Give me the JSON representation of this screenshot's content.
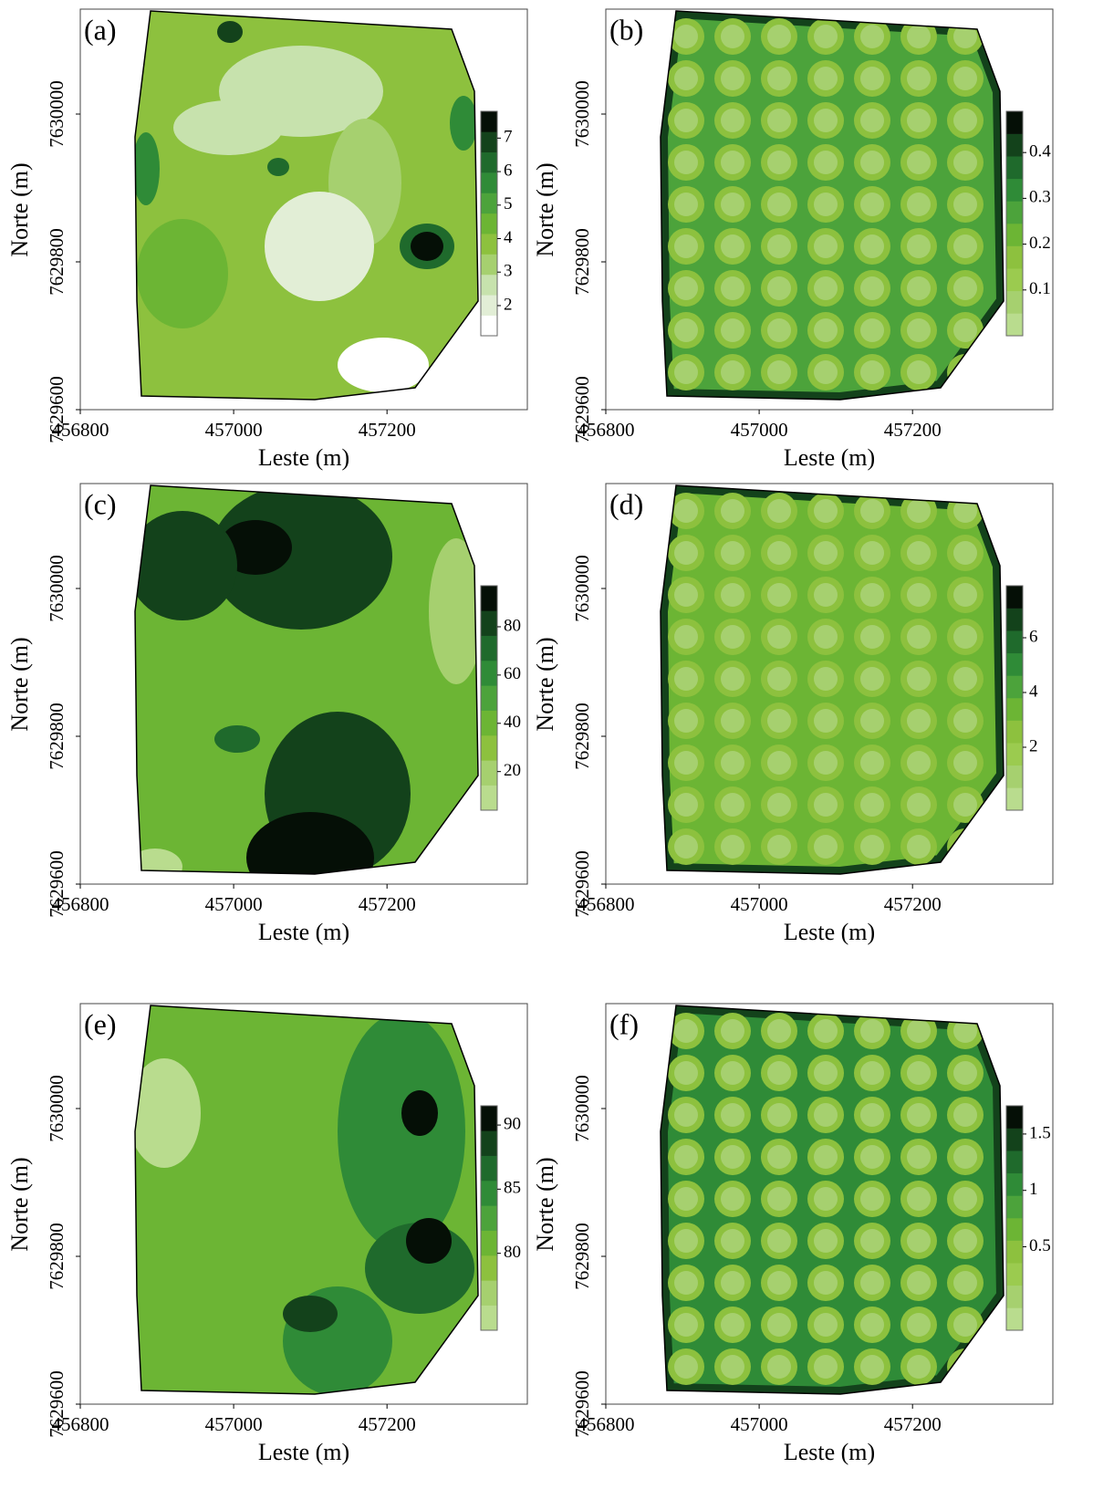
{
  "chart_data": [
    {
      "type": "contour",
      "label": "(a)",
      "xlabel": "Leste (m)",
      "ylabel": "Norte (m)",
      "xlim": [
        456800,
        457383
      ],
      "xticks": [
        456800,
        457000,
        457200
      ],
      "ylim": [
        7629600,
        7630142
      ],
      "yticks": [
        7629600,
        7629800,
        7630000
      ],
      "colorbar": {
        "lim": [
          1.1,
          7.8
        ],
        "ticks": [
          2,
          3,
          4,
          5,
          6,
          7
        ],
        "colors": [
          "#ffffff",
          "#e2eed6",
          "#c7e2ad",
          "#a6d06f",
          "#8dc13e",
          "#6cb534",
          "#4ca33b",
          "#2f8b37",
          "#1f6a2c",
          "#13421b",
          "#050f06"
        ]
      }
    },
    {
      "type": "contour",
      "label": "(b)",
      "xlabel": "Leste (m)",
      "ylabel": "Norte (m)",
      "xlim": [
        456800,
        457383
      ],
      "xticks": [
        456800,
        457000,
        457200
      ],
      "ylim": [
        7629600,
        7630142
      ],
      "yticks": [
        7629600,
        7629800,
        7630000
      ],
      "colorbar": {
        "lim": [
          0,
          0.49
        ],
        "ticks": [
          0.1,
          0.2,
          0.3,
          0.4
        ],
        "colors": [
          "#b9dc8e",
          "#a6d06f",
          "#9bcb4f",
          "#8dc13e",
          "#6cb534",
          "#4ca33b",
          "#2f8b37",
          "#1f6a2c",
          "#13421b",
          "#050f06"
        ]
      }
    },
    {
      "type": "contour",
      "label": "(c)",
      "xlabel": "Leste (m)",
      "ylabel": "Norte (m)",
      "xlim": [
        456800,
        457383
      ],
      "xticks": [
        456800,
        457000,
        457200
      ],
      "ylim": [
        7629600,
        7630142
      ],
      "yticks": [
        7629600,
        7629800,
        7630000
      ],
      "colorbar": {
        "lim": [
          4,
          97
        ],
        "ticks": [
          20,
          40,
          60,
          80
        ],
        "colors": [
          "#b9dc8e",
          "#a6d06f",
          "#8dc13e",
          "#6cb534",
          "#4ca33b",
          "#2f8b37",
          "#1f6a2c",
          "#13421b",
          "#050f06"
        ]
      }
    },
    {
      "type": "contour",
      "label": "(d)",
      "xlabel": "Leste (m)",
      "ylabel": "Norte (m)",
      "xlim": [
        456800,
        457383
      ],
      "xticks": [
        456800,
        457000,
        457200
      ],
      "ylim": [
        7629600,
        7630142
      ],
      "yticks": [
        7629600,
        7629800,
        7630000
      ],
      "colorbar": {
        "lim": [
          -0.3,
          7.9
        ],
        "ticks": [
          2,
          4,
          6
        ],
        "colors": [
          "#b9dc8e",
          "#a6d06f",
          "#9bcb4f",
          "#8dc13e",
          "#6cb534",
          "#4ca33b",
          "#2f8b37",
          "#1f6a2c",
          "#13421b",
          "#050f06"
        ]
      }
    },
    {
      "type": "contour",
      "label": "(e)",
      "xlabel": "Leste (m)",
      "ylabel": "Norte (m)",
      "xlim": [
        456800,
        457383
      ],
      "xticks": [
        456800,
        457000,
        457200
      ],
      "ylim": [
        7629600,
        7630142
      ],
      "yticks": [
        7629600,
        7629800,
        7630000
      ],
      "colorbar": {
        "lim": [
          74,
          91.5
        ],
        "ticks": [
          80,
          85,
          90
        ],
        "colors": [
          "#b9dc8e",
          "#a6d06f",
          "#8dc13e",
          "#6cb534",
          "#4ca33b",
          "#2f8b37",
          "#1f6a2c",
          "#13421b",
          "#050f06"
        ]
      }
    },
    {
      "type": "contour",
      "label": "(f)",
      "xlabel": "Leste (m)",
      "ylabel": "Norte (m)",
      "xlim": [
        456800,
        457383
      ],
      "xticks": [
        456800,
        457000,
        457200
      ],
      "ylim": [
        7629600,
        7630142
      ],
      "yticks": [
        7629600,
        7629800,
        7630000
      ],
      "colorbar": {
        "lim": [
          -0.24,
          1.75
        ],
        "ticks": [
          0.5,
          1,
          1.5
        ],
        "colors": [
          "#b9dc8e",
          "#a6d06f",
          "#9bcb4f",
          "#8dc13e",
          "#6cb534",
          "#4ca33b",
          "#2f8b37",
          "#1f6a2c",
          "#13421b",
          "#050f06"
        ]
      }
    }
  ]
}
